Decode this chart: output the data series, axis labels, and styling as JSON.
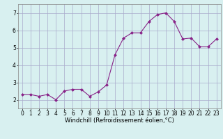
{
  "x": [
    0,
    1,
    2,
    3,
    4,
    5,
    6,
    7,
    8,
    9,
    10,
    11,
    12,
    13,
    14,
    15,
    16,
    17,
    18,
    19,
    20,
    21,
    22,
    23
  ],
  "y": [
    2.3,
    2.3,
    2.2,
    2.3,
    2.0,
    2.5,
    2.6,
    2.6,
    2.2,
    2.45,
    2.85,
    4.6,
    5.55,
    5.85,
    5.85,
    6.5,
    6.9,
    7.0,
    6.5,
    5.5,
    5.55,
    5.05,
    5.05,
    5.5
  ],
  "line_color": "#882288",
  "marker": "D",
  "marker_size": 2,
  "xlabel": "Windchill (Refroidissement éolien,°C)",
  "ylabel": "",
  "xlim": [
    -0.5,
    23.5
  ],
  "ylim": [
    1.5,
    7.5
  ],
  "yticks": [
    2,
    3,
    4,
    5,
    6,
    7
  ],
  "xticks": [
    0,
    1,
    2,
    3,
    4,
    5,
    6,
    7,
    8,
    9,
    10,
    11,
    12,
    13,
    14,
    15,
    16,
    17,
    18,
    19,
    20,
    21,
    22,
    23
  ],
  "bg_color": "#d8f0f0",
  "grid_color": "#aaaacc",
  "label_fontsize": 6,
  "tick_fontsize": 5.5
}
